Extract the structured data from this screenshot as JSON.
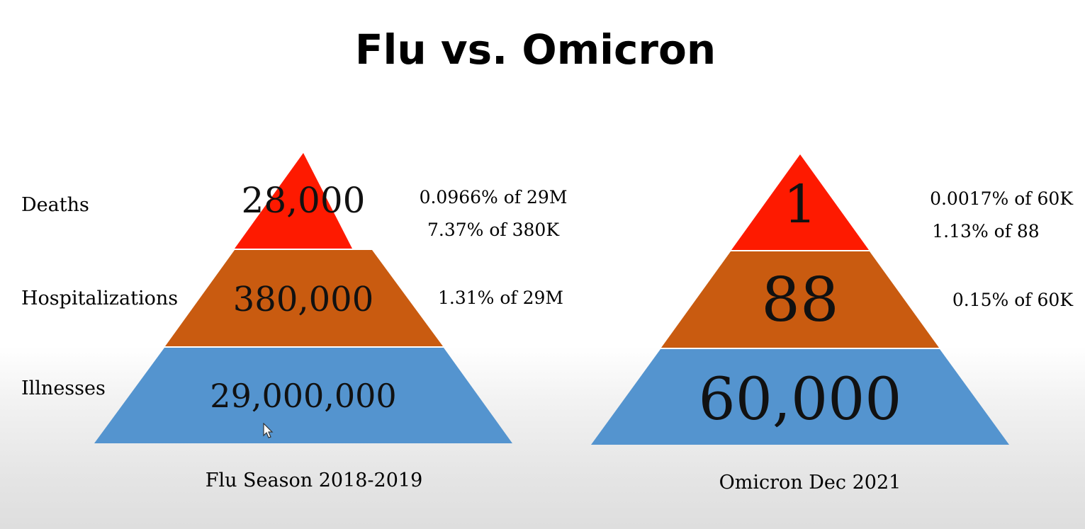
{
  "title": "Flu vs. Omicron",
  "row_labels": {
    "deaths": "Deaths",
    "hospitalizations": "Hospitalizations",
    "illnesses": "Illnesses"
  },
  "colors": {
    "deaths": "#fe1a00",
    "hospitalizations": "#c95b10",
    "illnesses": "#5494cf"
  },
  "flu": {
    "caption": "Flu Season 2018-2019",
    "deaths": "28,000",
    "hospitalizations": "380,000",
    "illnesses": "29,000,000",
    "deaths_pct_line1": "0.0966% of 29M",
    "deaths_pct_line2": "7.37% of 380K",
    "hosp_pct": "1.31% of 29M"
  },
  "omicron": {
    "caption": "Omicron Dec 2021",
    "deaths": "1",
    "hospitalizations": "88",
    "illnesses": "60,000",
    "deaths_pct_line1": "0.0017% of 60K",
    "deaths_pct_line2": "1.13% of 88",
    "hosp_pct": "0.15% of 60K"
  }
}
